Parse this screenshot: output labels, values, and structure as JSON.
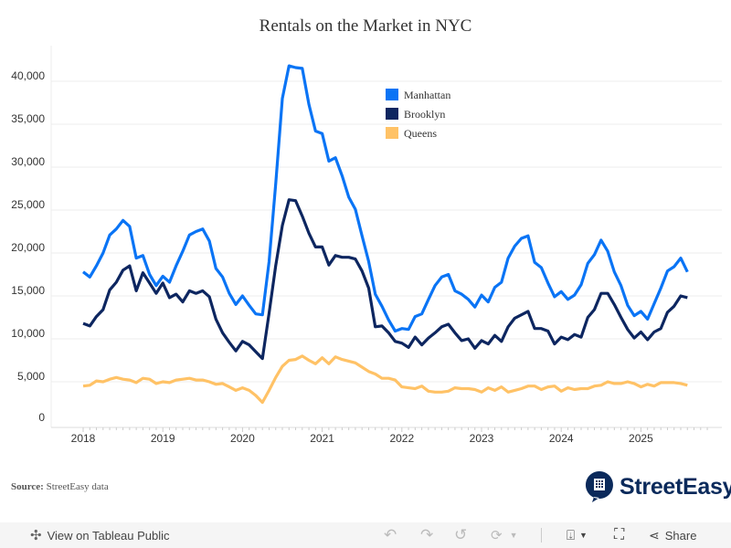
{
  "chart_data": {
    "type": "line",
    "title": "Rentals on the Market in NYC",
    "xlabel": "",
    "ylabel": "",
    "ylim": [
      0,
      42000
    ],
    "yticks": [
      "0",
      "5,000",
      "10,000",
      "15,000",
      "20,000",
      "25,000",
      "30,000",
      "35,000",
      "40,000"
    ],
    "ytick_values": [
      0,
      5000,
      10000,
      15000,
      20000,
      25000,
      30000,
      35000,
      40000
    ],
    "xticks": [
      "2018",
      "2019",
      "2020",
      "2021",
      "2022",
      "2023",
      "2024",
      "2025"
    ],
    "grid": "horizontal",
    "legend_position": "top-center",
    "x": [
      "2018-01",
      "2018-02",
      "2018-03",
      "2018-04",
      "2018-05",
      "2018-06",
      "2018-07",
      "2018-08",
      "2018-09",
      "2018-10",
      "2018-11",
      "2018-12",
      "2019-01",
      "2019-02",
      "2019-03",
      "2019-04",
      "2019-05",
      "2019-06",
      "2019-07",
      "2019-08",
      "2019-09",
      "2019-10",
      "2019-11",
      "2019-12",
      "2020-01",
      "2020-02",
      "2020-03",
      "2020-04",
      "2020-05",
      "2020-06",
      "2020-07",
      "2020-08",
      "2020-09",
      "2020-10",
      "2020-11",
      "2020-12",
      "2021-01",
      "2021-02",
      "2021-03",
      "2021-04",
      "2021-05",
      "2021-06",
      "2021-07",
      "2021-08",
      "2021-09",
      "2021-10",
      "2021-11",
      "2021-12",
      "2022-01",
      "2022-02",
      "2022-03",
      "2022-04",
      "2022-05",
      "2022-06",
      "2022-07",
      "2022-08",
      "2022-09",
      "2022-10",
      "2022-11",
      "2022-12",
      "2023-01",
      "2023-02",
      "2023-03",
      "2023-04",
      "2023-05",
      "2023-06",
      "2023-07",
      "2023-08",
      "2023-09",
      "2023-10",
      "2023-11",
      "2023-12",
      "2024-01",
      "2024-02",
      "2024-03",
      "2024-04",
      "2024-05",
      "2024-06",
      "2024-07",
      "2024-08",
      "2024-09",
      "2024-10",
      "2024-11",
      "2024-12",
      "2025-01",
      "2025-02",
      "2025-03",
      "2025-04",
      "2025-05",
      "2025-06",
      "2025-07",
      "2025-08"
    ],
    "series": [
      {
        "name": "Manhattan",
        "color": "#0a74f5",
        "values": [
          17800,
          17200,
          18500,
          20000,
          22100,
          22800,
          23800,
          23100,
          19400,
          19700,
          17500,
          16200,
          17300,
          16600,
          18500,
          20200,
          22100,
          22500,
          22800,
          21400,
          18200,
          17200,
          15300,
          14000,
          15000,
          13900,
          12900,
          12800,
          19000,
          28000,
          38000,
          41800,
          41600,
          41500,
          37300,
          34200,
          33900,
          30700,
          31100,
          29000,
          26500,
          25100,
          22000,
          19000,
          15200,
          13800,
          12200,
          10900,
          11200,
          11100,
          12600,
          12900,
          14600,
          16200,
          17200,
          17500,
          15600,
          15200,
          14600,
          13700,
          15100,
          14300,
          16000,
          16600,
          19400,
          20800,
          21700,
          22000,
          18900,
          18300,
          16500,
          14900,
          15500,
          14600,
          15100,
          16300,
          18800,
          19800,
          21500,
          20200,
          17800,
          16200,
          13900,
          12700,
          13200,
          12300,
          14100,
          15900,
          17900,
          18400,
          19400,
          17800
        ]
      },
      {
        "name": "Brooklyn",
        "color": "#0d2660",
        "values": [
          11800,
          11500,
          12600,
          13400,
          15700,
          16600,
          18000,
          18500,
          15600,
          17700,
          16500,
          15300,
          16500,
          14800,
          15200,
          14300,
          15600,
          15300,
          15600,
          14900,
          12300,
          10700,
          9600,
          8600,
          9700,
          9300,
          8500,
          7700,
          13000,
          18500,
          23200,
          26200,
          26100,
          24300,
          22300,
          20700,
          20700,
          18600,
          19700,
          19500,
          19500,
          19300,
          17900,
          15900,
          11400,
          11500,
          10700,
          9700,
          9500,
          9000,
          10200,
          9300,
          10100,
          10700,
          11400,
          11700,
          10700,
          9800,
          10000,
          8900,
          9800,
          9400,
          10400,
          9700,
          11400,
          12400,
          12800,
          13200,
          11200,
          11200,
          10900,
          9400,
          10200,
          9900,
          10500,
          10200,
          12500,
          13400,
          15300,
          15300,
          14000,
          12500,
          11100,
          10100,
          10800,
          9900,
          10800,
          11200,
          13100,
          13800,
          15000,
          14800
        ]
      },
      {
        "name": "Queens",
        "color": "#ffc266",
        "values": [
          4500,
          4600,
          5100,
          5000,
          5300,
          5500,
          5300,
          5200,
          4900,
          5400,
          5300,
          4800,
          5000,
          4900,
          5200,
          5300,
          5400,
          5200,
          5200,
          5000,
          4700,
          4800,
          4400,
          4000,
          4300,
          4000,
          3400,
          2600,
          4000,
          5500,
          6800,
          7500,
          7600,
          8000,
          7500,
          7100,
          7800,
          7100,
          7900,
          7600,
          7400,
          7200,
          6700,
          6200,
          5900,
          5400,
          5400,
          5200,
          4400,
          4300,
          4200,
          4500,
          3900,
          3800,
          3800,
          3900,
          4300,
          4200,
          4200,
          4100,
          3800,
          4300,
          4000,
          4400,
          3800,
          4000,
          4200,
          4500,
          4500,
          4100,
          4400,
          4500,
          3900,
          4300,
          4100,
          4200,
          4200,
          4500,
          4600,
          5000,
          4800,
          4800,
          5000,
          4800,
          4400,
          4700,
          4500,
          4900,
          4900,
          4900,
          4800,
          4600
        ]
      }
    ]
  },
  "source": {
    "label": "Source:",
    "text": "StreetEasy data"
  },
  "logo": {
    "text": "StreetEasy"
  },
  "toolbar": {
    "view_label": "View on Tableau Public",
    "share_label": "Share"
  }
}
